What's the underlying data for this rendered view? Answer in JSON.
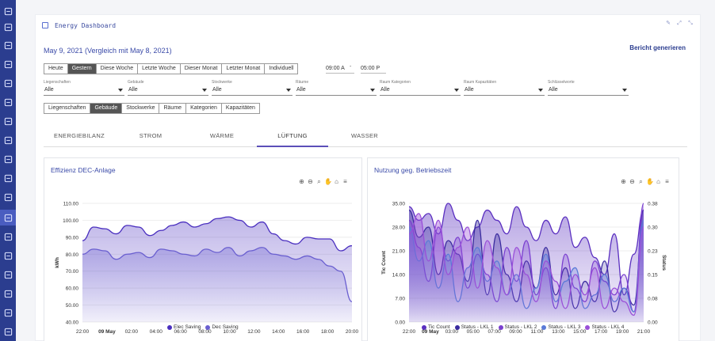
{
  "header": {
    "title": "Energy Dashboard"
  },
  "sidebar": {
    "icons": [
      "dashboard-icon",
      "flag-icon",
      "user-plus-icon",
      "network-icon",
      "send-icon",
      "building-icon",
      "tools-icon",
      "ledger-icon",
      "cart-icon",
      "person-icon",
      "document-icon",
      "home-icon",
      "tree-icon",
      "chart-icon",
      "grid-icon",
      "table-icon",
      "report-icon",
      "settings-icon"
    ],
    "active_index": 11
  },
  "date_title": "May 9, 2021 (Vergleich mit May 8, 2021)",
  "report_link": "Bericht generieren",
  "period_buttons": [
    "Heute",
    "Gestern",
    "Diese Woche",
    "Letzte Woche",
    "Dieser Monat",
    "Letzter Monat",
    "Individuell"
  ],
  "period_selected": "Gestern",
  "time_from": "09:00 A",
  "time_sep": "-",
  "time_to": "05:00 P",
  "filters": [
    {
      "label": "Liegenschaften",
      "value": "Alle"
    },
    {
      "label": "Gebäude",
      "value": "Alle"
    },
    {
      "label": "Stockwerke",
      "value": "Alle"
    },
    {
      "label": "Räume",
      "value": "Alle"
    },
    {
      "label": "Raum Kategorien",
      "value": "Alle"
    },
    {
      "label": "Raum Kapazitäten",
      "value": "Alle"
    },
    {
      "label": "Schlüsselworte",
      "value": "Alle"
    }
  ],
  "group_buttons": [
    "Liegenschaften",
    "Gebäude",
    "Stockwerke",
    "Räume",
    "Kategorien",
    "Kapazitäten"
  ],
  "group_selected": "Gebäude",
  "tabs": [
    "ENERGIEBILANZ",
    "STROM",
    "WÄRME",
    "LÜFTUNG",
    "WASSER"
  ],
  "tab_active": "LÜFTUNG",
  "colors": {
    "sidebar": "#2b3d8f",
    "accent": "#5b4fb8",
    "series_dark": "#4a2fbf",
    "series_light": "#6a5fd0"
  },
  "chart_data": [
    {
      "type": "area",
      "title": "Effizienz DEC-Anlage",
      "xlabel": "",
      "ylabel": "kWh",
      "ylim": [
        40,
        110
      ],
      "yticks": [
        "110.00",
        "100.00",
        "90.00",
        "80.00",
        "70.00",
        "60.00",
        "50.00",
        "40.00"
      ],
      "xticks": [
        "22:00",
        "09 May",
        "02:00",
        "04:00",
        "06:00",
        "08:00",
        "10:00",
        "12:00",
        "14:00",
        "16:00",
        "18:00",
        "20:00"
      ],
      "x": [
        "22:00",
        "23:00",
        "00:00",
        "01:00",
        "02:00",
        "03:00",
        "04:00",
        "05:00",
        "06:00",
        "07:00",
        "08:00",
        "09:00",
        "10:00",
        "11:00",
        "12:00",
        "13:00",
        "14:00",
        "15:00",
        "16:00",
        "17:00",
        "18:00",
        "19:00",
        "20:00",
        "21:00",
        "22:00"
      ],
      "series": [
        {
          "name": "Elec Saving",
          "color": "#4a2fbf",
          "values": [
            88,
            96,
            95,
            92,
            97,
            96,
            91,
            94,
            97,
            99,
            96,
            98,
            101,
            102,
            100,
            96,
            99,
            92,
            88,
            86,
            90,
            89,
            89,
            82,
            85
          ]
        },
        {
          "name": "Dec Saving",
          "color": "#6a5fd0",
          "values": [
            80,
            83,
            82,
            77,
            80,
            81,
            78,
            83,
            82,
            80,
            79,
            83,
            81,
            84,
            79,
            82,
            84,
            80,
            79,
            77,
            79,
            77,
            73,
            70,
            52
          ]
        }
      ],
      "legend": "bottom"
    },
    {
      "type": "area",
      "title": "Nutzung geg. Betriebszeit",
      "ylabel": "Tic Count",
      "y2label": "Status",
      "ylim": [
        0,
        35
      ],
      "y2lim": [
        0,
        0.38
      ],
      "yticks": [
        "35.00",
        "28.00",
        "21.00",
        "14.00",
        "7.00",
        "0.00"
      ],
      "y2ticks": [
        "0.38",
        "0.30",
        "0.23",
        "0.15",
        "0.08",
        "0.00"
      ],
      "xticks": [
        "22:00",
        "09 May",
        "03:00",
        "05:00",
        "07:00",
        "09:00",
        "11:00",
        "13:00",
        "15:00",
        "17:00",
        "19:00",
        "21:00"
      ],
      "series": [
        {
          "name": "Tic Count",
          "color": "#5a2fc0",
          "values": [
            34,
            30,
            32,
            26,
            35,
            30,
            24,
            28,
            33,
            30,
            26,
            34,
            28,
            24,
            30,
            26,
            31,
            22,
            25,
            19,
            14,
            26,
            8,
            20,
            33
          ]
        },
        {
          "name": "Status - LKL 1",
          "color": "#3a2b9f",
          "values": [
            33,
            25,
            28,
            14,
            24,
            20,
            12,
            30,
            8,
            26,
            14,
            6,
            18,
            10,
            22,
            8,
            16,
            4,
            12,
            6,
            18,
            3,
            10,
            5,
            33
          ]
        },
        {
          "name": "Status - LKL 2",
          "color": "#7a3fd0",
          "values": [
            30,
            22,
            12,
            28,
            18,
            25,
            10,
            20,
            14,
            6,
            22,
            12,
            24,
            8,
            16,
            4,
            20,
            10,
            6,
            18,
            12,
            8,
            14,
            3,
            35
          ]
        },
        {
          "name": "Status - LKL 3",
          "color": "#5a7ad8",
          "values": [
            28,
            18,
            24,
            10,
            20,
            6,
            16,
            22,
            12,
            18,
            8,
            14,
            4,
            10,
            20,
            6,
            12,
            16,
            4,
            8,
            14,
            6,
            10,
            3,
            30
          ]
        },
        {
          "name": "Status - LKL 4",
          "color": "#9a4fd8",
          "values": [
            26,
            32,
            18,
            30,
            14,
            22,
            28,
            10,
            24,
            16,
            8,
            22,
            14,
            6,
            18,
            12,
            4,
            14,
            8,
            16,
            4,
            10,
            6,
            2,
            28
          ]
        }
      ],
      "legend": "bottom"
    }
  ]
}
